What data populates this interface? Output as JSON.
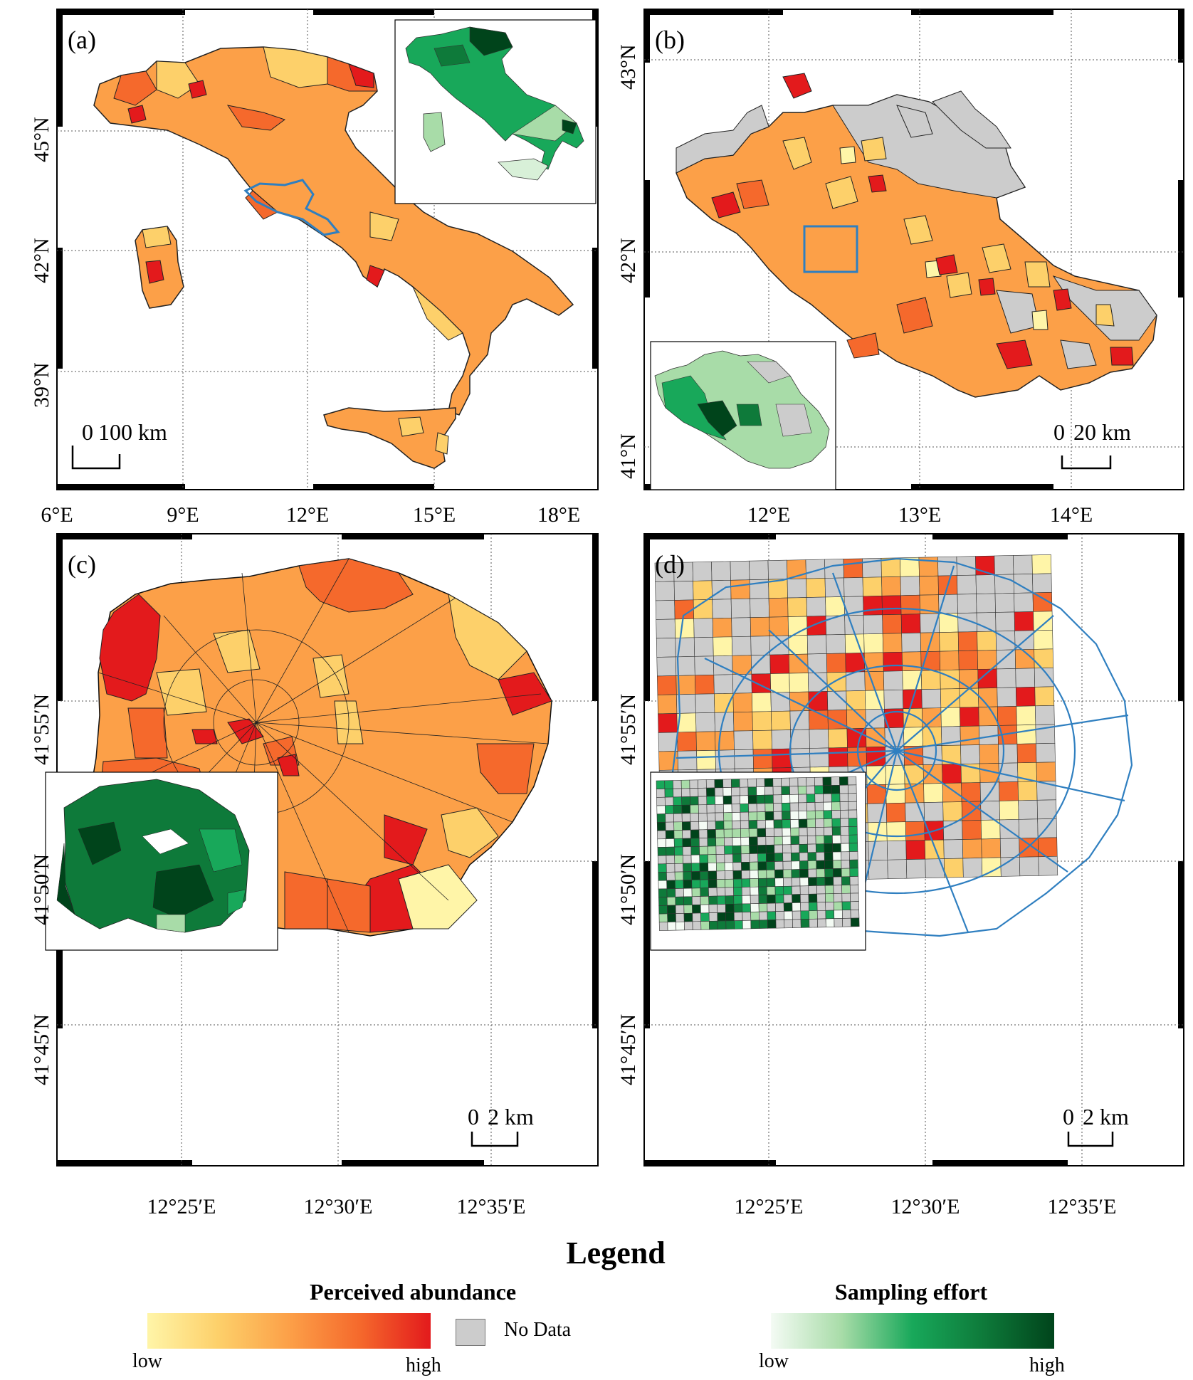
{
  "panels": {
    "a": {
      "label": "(a)",
      "lat_ticks": [
        "45°N",
        "42°N",
        "39°N"
      ],
      "lon_ticks": [
        "6°E",
        "9°E",
        "12°E",
        "15°E",
        "18°E"
      ],
      "scalebar": {
        "zero": "0",
        "dist": "100 km"
      }
    },
    "b": {
      "label": "(b)",
      "lat_ticks": [
        "43°N",
        "42°N",
        "41°N"
      ],
      "lon_ticks": [
        "12°E",
        "13°E",
        "14°E"
      ],
      "scalebar": {
        "zero": "0",
        "dist": "20 km"
      }
    },
    "c": {
      "label": "(c)",
      "lat_ticks": [
        "41°55′N",
        "41°50′N",
        "41°45′N"
      ],
      "lon_ticks": [
        "12°25′E",
        "12°30′E",
        "12°35′E"
      ],
      "scalebar": {
        "zero": "0",
        "dist": "2 km"
      }
    },
    "d": {
      "label": "(d)",
      "lat_ticks": [
        "41°55′N",
        "41°50′N",
        "41°45′N"
      ],
      "lon_ticks": [
        "12°25′E",
        "12°30′E",
        "12°35′E"
      ],
      "scalebar": {
        "zero": "0",
        "dist": "2 km"
      }
    }
  },
  "legend": {
    "title": "Legend",
    "abundance": {
      "title": "Perceived abundance",
      "low": "low",
      "high": "high",
      "no_data": "No Data"
    },
    "effort": {
      "title": "Sampling effort",
      "low": "low",
      "high": "high"
    }
  },
  "colors": {
    "abundance_scale": [
      "#fff5a8",
      "#fdd06a",
      "#fca048",
      "#f5692c",
      "#e31a1c"
    ],
    "effort_scale": [
      "#f4fbf4",
      "#a8dca8",
      "#18a85a",
      "#0e7a3a",
      "#00441b"
    ],
    "no_data": "#cccccc",
    "outline_blue": "#2f7fc0"
  }
}
